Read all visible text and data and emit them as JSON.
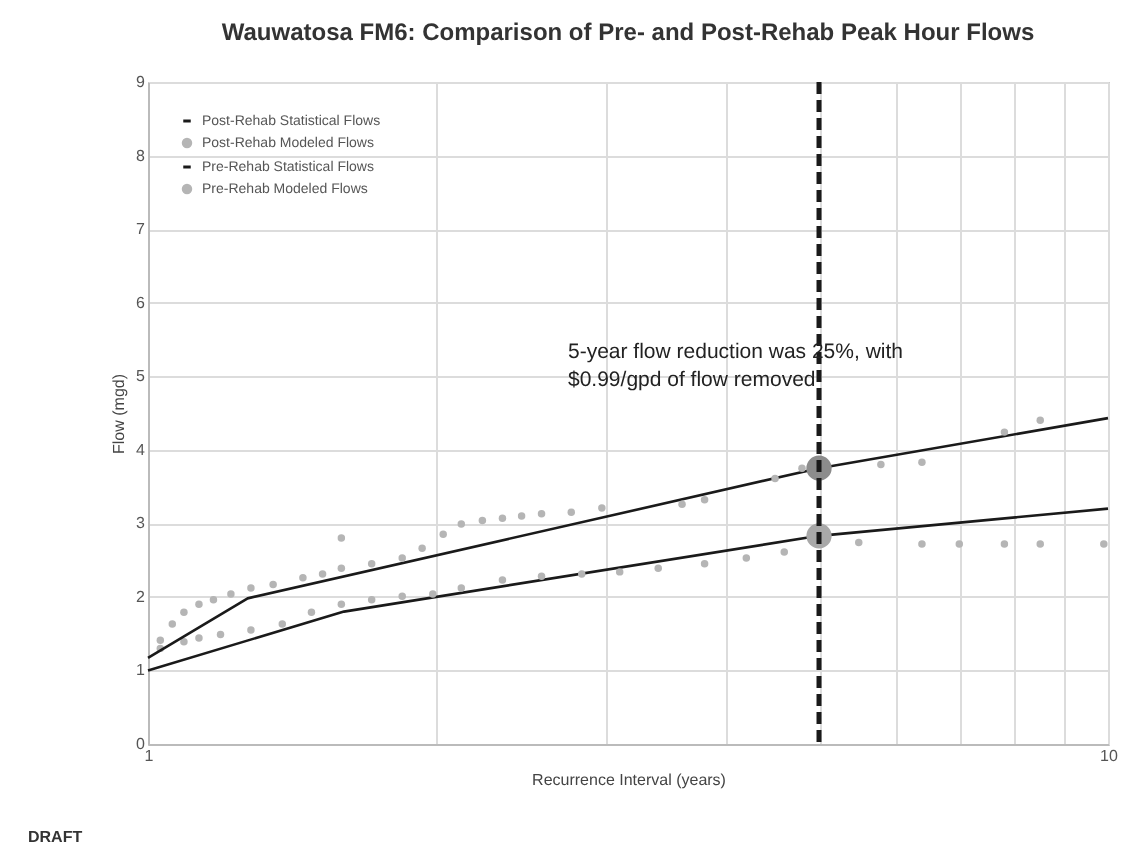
{
  "chart_data": {
    "type": "line",
    "title": "Wauwatosa FM6: Comparison of Pre- and Post-Rehab Peak Hour Flows",
    "xlabel": "Recurrence Interval (years)",
    "ylabel": "Flow (mgd)",
    "log": "x",
    "grid": true,
    "legend": "top left",
    "xlim": [
      1,
      10
    ],
    "xticks": [
      1,
      {
        "value": 2,
        "label": null
      },
      {
        "value": 3,
        "label": null
      },
      {
        "value": 4,
        "label": null
      },
      {
        "value": 5,
        "label": null
      },
      {
        "value": 6,
        "label": null
      },
      {
        "value": 7,
        "label": null
      },
      {
        "value": 8,
        "label": null
      },
      {
        "value": 9,
        "label": null
      },
      10
    ],
    "ylim": [
      0,
      9
    ],
    "yticks": [
      0,
      1,
      2,
      3,
      4,
      5,
      6,
      7,
      8,
      9
    ],
    "series": [
      {
        "name": "Post-Rehab Statistical Flows",
        "color": "#1a1a1a",
        "x": [
          1,
          1.6,
          5,
          10
        ],
        "values": [
          1.0,
          1.8,
          2.83,
          3.2
        ]
      },
      {
        "name": "Post-Rehab Modeled Flows",
        "type": "scatter",
        "marker": "circle",
        "color": "#b5b5b5",
        "x": [
          1.03,
          1.09,
          1.13,
          1.19,
          1.28,
          1.38,
          1.48,
          1.59,
          1.71,
          1.84,
          1.98,
          2.12,
          2.34,
          2.57,
          2.83,
          3.1,
          3.4,
          3.8,
          4.2,
          4.6,
          5.5,
          6.4,
          7.0,
          7.8,
          8.5,
          9.9
        ],
        "values": [
          1.3,
          1.39,
          1.44,
          1.49,
          1.55,
          1.63,
          1.79,
          1.9,
          1.96,
          2.01,
          2.04,
          2.12,
          2.23,
          2.28,
          2.31,
          2.34,
          2.39,
          2.45,
          2.53,
          2.61,
          2.74,
          2.72,
          2.72,
          2.72,
          2.72,
          2.72
        ]
      },
      {
        "name": "Pre-Rehab Statistical Flows",
        "color": "#1a1a1a",
        "x": [
          1,
          1.27,
          5,
          10
        ],
        "values": [
          1.17,
          1.98,
          3.75,
          4.43
        ]
      },
      {
        "name": "Pre-Rehab Modeled Flows",
        "type": "scatter",
        "marker": "circle",
        "color": "#b5b5b5",
        "x": [
          1.03,
          1.06,
          1.09,
          1.13,
          1.17,
          1.22,
          1.28,
          1.35,
          1.45,
          1.52,
          1.59,
          1.71,
          1.84,
          1.93,
          2.03,
          2.12,
          2.23,
          2.34,
          2.45,
          2.57,
          2.76,
          2.97,
          3.6,
          3.8,
          4.5,
          4.8,
          5.8,
          6.4,
          7.8,
          8.5,
          1.59
        ],
        "values": [
          1.41,
          1.63,
          1.79,
          1.9,
          1.96,
          2.04,
          2.12,
          2.17,
          2.26,
          2.31,
          2.39,
          2.45,
          2.53,
          2.66,
          2.85,
          2.99,
          3.04,
          3.07,
          3.1,
          3.13,
          3.15,
          3.21,
          3.26,
          3.32,
          3.61,
          3.75,
          3.8,
          3.83,
          4.24,
          4.4,
          2.8
        ]
      },
      {
        "type": "scatter",
        "marker": "circle",
        "color": "#8c8c8c",
        "x": [
          5
        ],
        "values": [
          3.75
        ]
      },
      {
        "type": "scatter",
        "marker": "circle",
        "color": "#a8a8a8",
        "x": [
          5
        ],
        "values": [
          2.83
        ]
      }
    ],
    "ref_lines": [
      {
        "axis": "x",
        "value": 5,
        "color": "#1a1a1a",
        "line_style": "dashed"
      }
    ],
    "annotations": [
      "5-year flow reduction was 25%, with\n$0.99/gpd of flow removed",
      "DRAFT"
    ]
  }
}
